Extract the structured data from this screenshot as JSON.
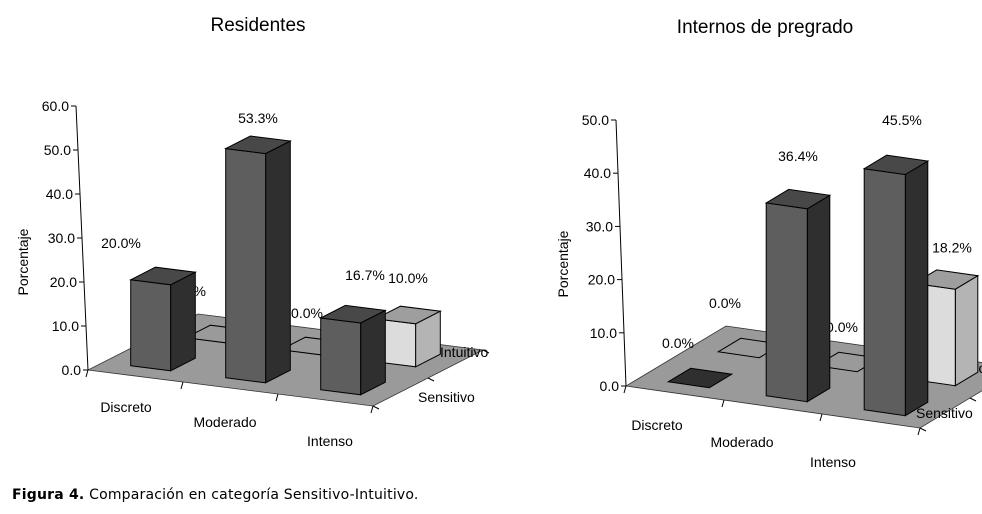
{
  "caption": {
    "label": "Figura 4.",
    "text": " Comparación en categoría Sensitivo-Intuitivo."
  },
  "colors": {
    "floor": "#9a9a9a",
    "sensitivo_front": "#5e5e5e",
    "sensitivo_side": "#2f2f2f",
    "sensitivo_top": "#484848",
    "intuitivo_front": "#dcdcdc",
    "intuitivo_side": "#b4b4b4",
    "intuitivo_top": "#9e9e9e"
  },
  "chart_data": [
    {
      "type": "bar",
      "title": "Residentes",
      "ylabel": "Porcentaje",
      "ylim": [
        0,
        60
      ],
      "yticks": [
        "0.0",
        "10.0",
        "20.0",
        "30.0",
        "40.0",
        "50.0",
        "60.0"
      ],
      "categories": [
        "Discreto",
        "Moderado",
        "Intenso"
      ],
      "series": [
        {
          "name": "Sensitivo",
          "values": [
            20.0,
            53.3,
            16.7
          ],
          "labels": [
            "20.0%",
            "53.3%",
            "16.7%"
          ]
        },
        {
          "name": "Intuitivo",
          "values": [
            0.0,
            0.0,
            10.0
          ],
          "labels": [
            "0.0%",
            "0.0%",
            "10.0%"
          ]
        }
      ]
    },
    {
      "type": "bar",
      "title": "Internos de pregrado",
      "ylabel": "Porcentaje",
      "ylim": [
        0,
        50
      ],
      "yticks": [
        "0.0",
        "10.0",
        "20.0",
        "30.0",
        "40.0",
        "50.0"
      ],
      "categories": [
        "Discreto",
        "Moderado",
        "Intenso"
      ],
      "series": [
        {
          "name": "Sensitivo",
          "values": [
            0.0,
            36.4,
            45.5
          ],
          "labels": [
            "0.0%",
            "36.4%",
            "45.5%"
          ]
        },
        {
          "name": "Intuitivo",
          "values": [
            0.0,
            0.0,
            18.2
          ],
          "labels": [
            "0.0%",
            "0.0%",
            "18.2%"
          ]
        }
      ]
    }
  ]
}
